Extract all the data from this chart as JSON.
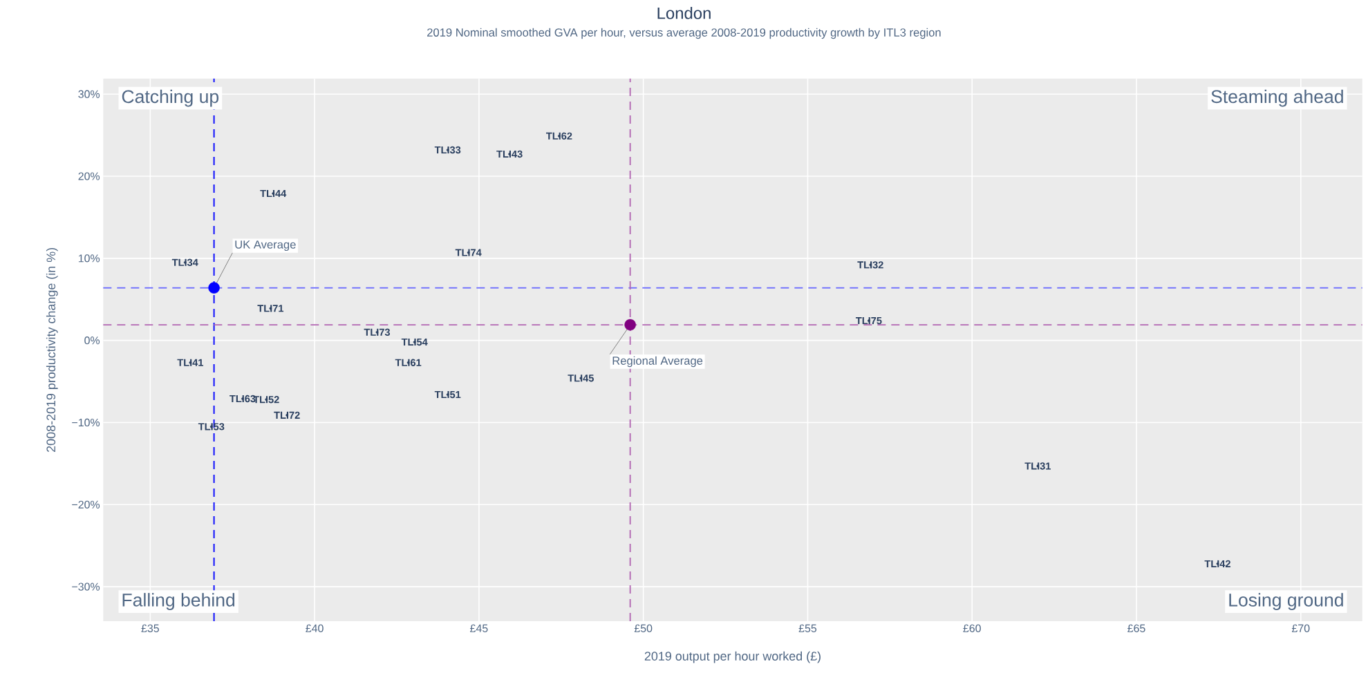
{
  "chart_data": {
    "type": "scatter",
    "title": "London",
    "subtitle": "2019 Nominal smoothed GVA per hour, versus average 2008-2019 productivity growth by ITL3 region",
    "xlabel": "2019 output per hour worked (£)",
    "ylabel": "2008-2019 productivity change (in %)",
    "xlim": [
      33.57,
      71.87
    ],
    "ylim": [
      -34.2,
      31.9
    ],
    "xticks": [
      {
        "value": 35,
        "label": "£35"
      },
      {
        "value": 40,
        "label": "£40"
      },
      {
        "value": 45,
        "label": "£45"
      },
      {
        "value": 50,
        "label": "£50"
      },
      {
        "value": 55,
        "label": "£55"
      },
      {
        "value": 60,
        "label": "£60"
      },
      {
        "value": 65,
        "label": "£65"
      },
      {
        "value": 70,
        "label": "£70"
      }
    ],
    "yticks": [
      {
        "value": -30,
        "label": "−30%"
      },
      {
        "value": -20,
        "label": "−20%"
      },
      {
        "value": -10,
        "label": "−10%"
      },
      {
        "value": 0,
        "label": "0%"
      },
      {
        "value": 10,
        "label": "10%"
      },
      {
        "value": 20,
        "label": "20%"
      },
      {
        "value": 30,
        "label": "30%"
      }
    ],
    "grid": true,
    "series": [
      {
        "color": "#2a3f5f",
        "marker": "circle",
        "x": [
          44.05,
          45.93,
          47.44,
          38.74,
          36.06,
          44.68,
          56.91,
          38.66,
          56.86,
          41.9,
          43.04,
          36.22,
          42.85,
          48.1,
          44.05,
          37.81,
          38.53,
          39.16,
          36.86,
          62.0,
          67.47
        ],
        "values": [
          23.2,
          22.7,
          24.9,
          17.9,
          9.5,
          10.7,
          9.2,
          3.9,
          2.4,
          1.0,
          -0.2,
          -2.7,
          -2.7,
          -4.6,
          -6.6,
          -7.1,
          -7.2,
          -9.1,
          -10.5,
          -15.3,
          -27.2
        ],
        "value_labels": [
          "TLI33",
          "TLI43",
          "TLI62",
          "TLI44",
          "TLI34",
          "TLI74",
          "TLI32",
          "TLI71",
          "TLI75",
          "TLI73",
          "TLI54",
          "TLI41",
          "TLI61",
          "TLI45",
          "TLI51",
          "TLI63",
          "TLI52",
          "TLI72",
          "TLI53",
          "TLI31",
          "TLI42"
        ]
      },
      {
        "color": "#0000ff",
        "marker": "circle",
        "x": [
          36.94
        ],
        "values": [
          6.4
        ]
      },
      {
        "color": "#800080",
        "marker": "circle",
        "x": [
          49.6
        ],
        "values": [
          1.9
        ]
      }
    ],
    "ref_lines": [
      {
        "axis": "x",
        "value": 36.94,
        "color": "#0000ff",
        "line_style": "dashed"
      },
      {
        "axis": "y",
        "value": 6.4,
        "color": "#6666ff",
        "line_style": "dashed"
      },
      {
        "axis": "x",
        "value": 49.6,
        "color": "#b266b2",
        "line_style": "dashed"
      },
      {
        "axis": "y",
        "value": 1.9,
        "color": "#b266b2",
        "line_style": "dashed"
      }
    ],
    "annotations": [
      "Catching up",
      "Steaming ahead",
      "Falling behind",
      "Losing ground",
      {
        "text": "UK Average",
        "x": 36.94,
        "y": 6.4
      },
      {
        "text": "Regional Average",
        "x": 49.6,
        "y": 1.9
      }
    ]
  }
}
